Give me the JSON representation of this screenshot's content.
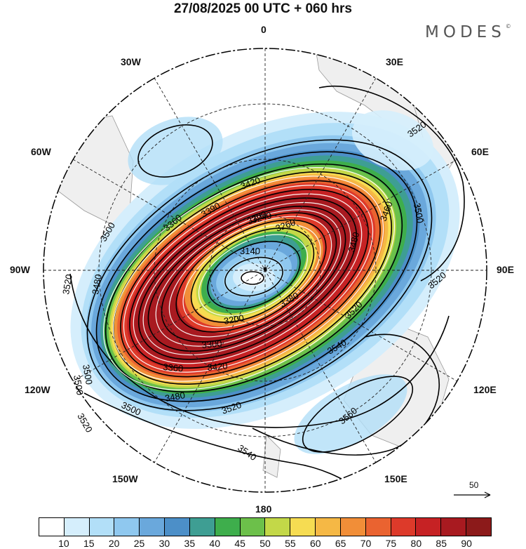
{
  "title": "27/08/2025  00 UTC  + 060 hrs",
  "logo": "MODES",
  "logo_mark": "©",
  "longitude_labels": {
    "top": "0",
    "bottom": "180",
    "left": "90W",
    "right": "90E",
    "lon30w": "30W",
    "lon30e": "30E",
    "lon60w": "60W",
    "lon60e": "60E",
    "lon120w": "120W",
    "lon120e": "120E",
    "lon150w": "150W",
    "lon150e": "150E"
  },
  "contour_labels": [
    "3520",
    "3520",
    "3500",
    "3460",
    "3480",
    "3520",
    "3540",
    "3560",
    "3540",
    "3520",
    "3500",
    "3480",
    "3500",
    "3520",
    "3500",
    "3480",
    "3420",
    "3390",
    "3360",
    "3300",
    "3260",
    "3200",
    "3140",
    "3240",
    "3300",
    "3360",
    "3420",
    "3500",
    "3520",
    "3380"
  ],
  "reference_vector": "50",
  "colorbar": {
    "colors": [
      "#ffffff",
      "#d5eefc",
      "#b2dff8",
      "#8fc8ef",
      "#6aa8dc",
      "#4c8fc8",
      "#3e9e93",
      "#3eae4c",
      "#6cc04a",
      "#c3d848",
      "#f6dc52",
      "#f5b845",
      "#f18e38",
      "#ea6330",
      "#dd3a2a",
      "#c62224",
      "#a81a20",
      "#8c1a1a"
    ],
    "labels": [
      "10",
      "15",
      "20",
      "25",
      "30",
      "35",
      "40",
      "45",
      "50",
      "55",
      "60",
      "65",
      "70",
      "75",
      "80",
      "85",
      "90"
    ]
  }
}
